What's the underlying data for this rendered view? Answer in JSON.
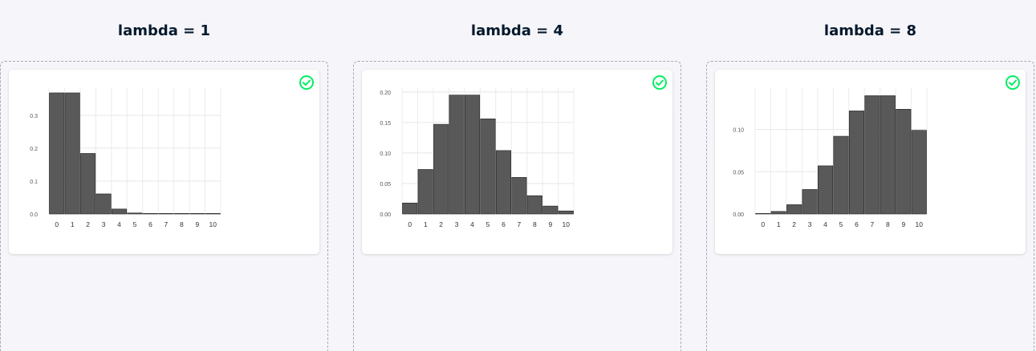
{
  "colors": {
    "background": "#f6f6fa",
    "title": "#05192d",
    "bar_fill": "#595959",
    "check": "#03ef62"
  },
  "columns": [
    {
      "title": "lambda = 1",
      "card_status_icon": "check-circle-icon"
    },
    {
      "title": "lambda = 4",
      "card_status_icon": "check-circle-icon"
    },
    {
      "title": "lambda = 8",
      "card_status_icon": "check-circle-icon"
    }
  ],
  "chart_data": [
    {
      "type": "bar",
      "categories": [
        "0",
        "1",
        "2",
        "3",
        "4",
        "5",
        "6",
        "7",
        "8",
        "9",
        "10"
      ],
      "values": [
        0.368,
        0.368,
        0.184,
        0.061,
        0.015,
        0.003,
        0.0005,
        0.0001,
        0.0,
        0.0,
        0.0
      ],
      "ylim": [
        0,
        0.38
      ],
      "yticks": [
        0.0,
        0.1,
        0.2,
        0.3
      ],
      "ytick_labels": [
        "0.0",
        "0.1",
        "0.2",
        "0.3"
      ],
      "grid": true
    },
    {
      "type": "bar",
      "categories": [
        "0",
        "1",
        "2",
        "3",
        "4",
        "5",
        "6",
        "7",
        "8",
        "9",
        "10"
      ],
      "values": [
        0.018,
        0.073,
        0.147,
        0.195,
        0.195,
        0.156,
        0.104,
        0.06,
        0.03,
        0.013,
        0.005
      ],
      "ylim": [
        0,
        0.205
      ],
      "yticks": [
        0.0,
        0.05,
        0.1,
        0.15,
        0.2
      ],
      "ytick_labels": [
        "0.00",
        "0.05",
        "0.10",
        "0.15",
        "0.20"
      ],
      "grid": true
    },
    {
      "type": "bar",
      "categories": [
        "0",
        "1",
        "2",
        "3",
        "4",
        "5",
        "6",
        "7",
        "8",
        "9",
        "10"
      ],
      "values": [
        0.0003,
        0.003,
        0.011,
        0.029,
        0.057,
        0.092,
        0.122,
        0.14,
        0.14,
        0.124,
        0.099
      ],
      "ylim": [
        0,
        0.148
      ],
      "yticks": [
        0.0,
        0.05,
        0.1
      ],
      "ytick_labels": [
        "0.00",
        "0.05",
        "0.10"
      ],
      "grid": true
    }
  ]
}
